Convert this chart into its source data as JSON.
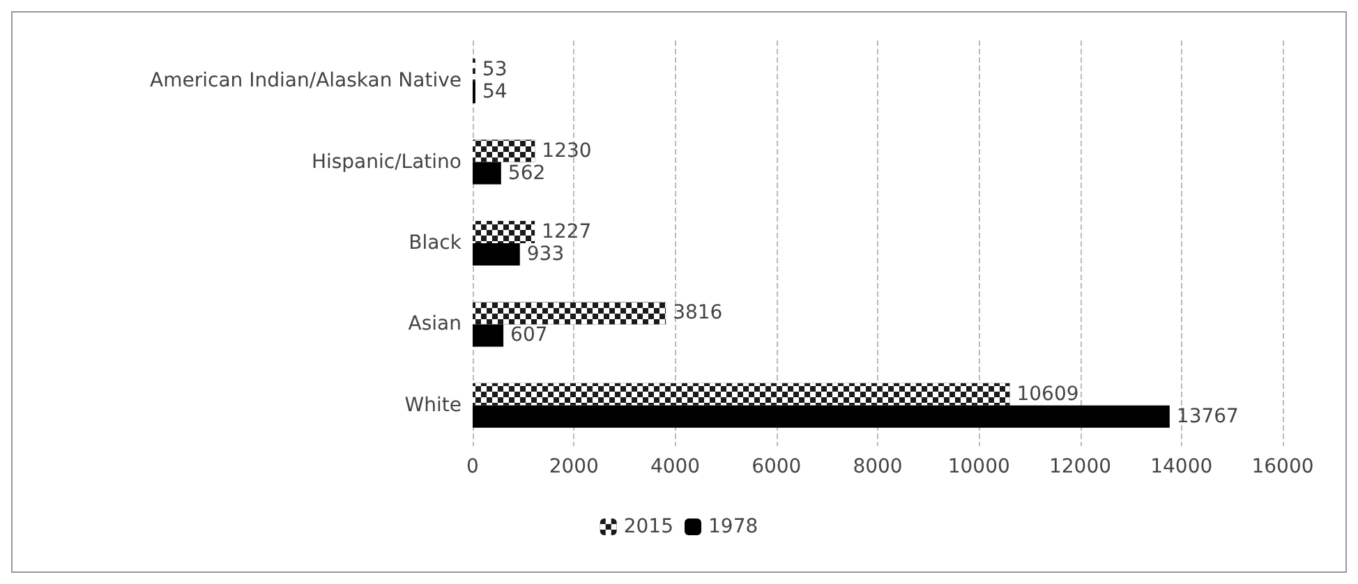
{
  "chart_data": {
    "type": "bar",
    "orientation": "horizontal",
    "categories": [
      "American Indian/Alaskan Native",
      "Hispanic/Latino",
      "Black",
      "Asian",
      "White"
    ],
    "series": [
      {
        "name": "2015",
        "color": "#1a1a1a",
        "values": [
          53,
          1230,
          1227,
          3816,
          10609
        ]
      },
      {
        "name": "1978",
        "color": "#000000",
        "values": [
          54,
          562,
          933,
          607,
          13767
        ]
      }
    ],
    "xlim": [
      0,
      16000
    ],
    "xticks": [
      0,
      2000,
      4000,
      6000,
      8000,
      10000,
      12000,
      14000,
      16000
    ],
    "grid": "x",
    "legend": "bottom",
    "data_labels": true
  }
}
